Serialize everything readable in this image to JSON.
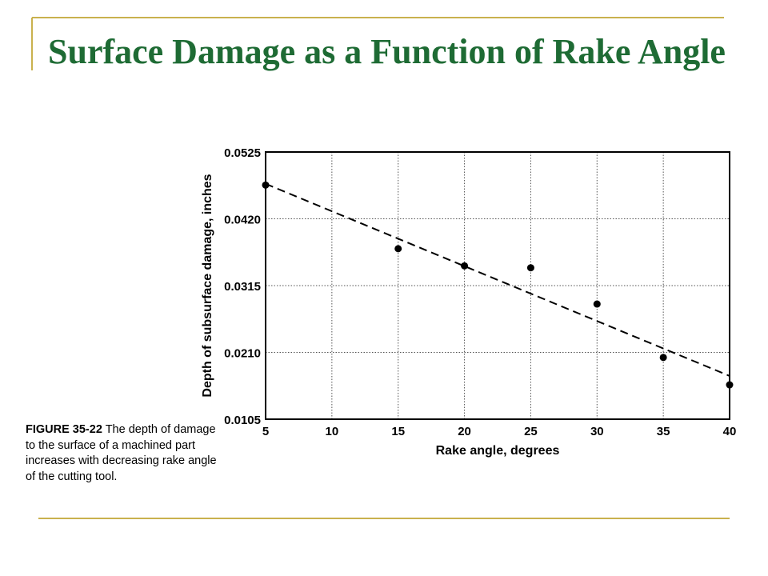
{
  "chart_data": {
    "type": "scatter",
    "title": "Surface Damage as a Function of Rake Angle",
    "x_label": "Rake angle, degrees",
    "y_label": "Depth of subsurface damage, inches",
    "x": [
      5,
      15,
      20,
      25,
      30,
      35,
      40
    ],
    "values": [
      0.0473,
      0.0373,
      0.0346,
      0.0343,
      0.0286,
      0.0202,
      0.0159
    ],
    "color": "#000000",
    "trend_line": {
      "x": [
        5,
        40
      ],
      "values": [
        0.0475,
        0.0173
      ]
    },
    "xlim": [
      5,
      40
    ],
    "xticks": [
      5,
      10,
      15,
      20,
      25,
      30,
      35,
      40
    ],
    "ylim": [
      0.0105,
      0.0525
    ],
    "yticks": [
      0.0105,
      {
        "value": 0.021,
        "label": "0.0210"
      },
      0.0315,
      {
        "value": 0.042,
        "label": "0.0420"
      },
      0.0525
    ],
    "grid": true
  },
  "caption": {
    "label": "FIGURE 35-22",
    "text": "The depth of damage to the surface of a machined part increases with decreasing rake angle of the cutting tool."
  }
}
